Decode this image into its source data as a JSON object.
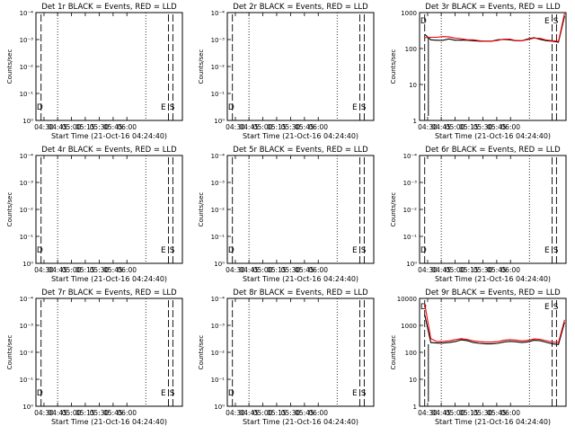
{
  "chart_data": [
    {
      "type": "line",
      "title": "Det 1r BLACK = Events, RED = LLD",
      "xlabel": "Start Time (21-Oct-16 04:24:40)",
      "ylabel": "Counts/sec",
      "x_ticks": [
        "04:30",
        "04:45",
        "05:00",
        "05:15",
        "05:30",
        "05:45",
        "06:00"
      ],
      "y_ticks": [
        "10⁰",
        "10⁻¹",
        "10⁻²",
        "10⁻³",
        "10⁻⁴"
      ],
      "markers": [
        "D",
        "E",
        "S"
      ],
      "series": []
    },
    {
      "type": "line",
      "title": "Det 2r BLACK = Events, RED = LLD",
      "xlabel": "Start Time (21-Oct-16 04:24:40)",
      "ylabel": "Counts/sec",
      "x_ticks": [
        "04:30",
        "04:45",
        "05:00",
        "05:15",
        "05:30",
        "05:45",
        "06:00"
      ],
      "y_ticks": [
        "10⁰",
        "10⁻¹",
        "10⁻²",
        "10⁻³",
        "10⁻⁴"
      ],
      "markers": [
        "D",
        "E",
        "S"
      ],
      "series": []
    },
    {
      "type": "line",
      "title": "Det 3r BLACK = Events, RED = LLD",
      "xlabel": "Start Time (21-Oct-16 04:24:40)",
      "ylabel": "Counts/sec",
      "x_ticks": [
        "04:30",
        "04:45",
        "05:00",
        "05:15",
        "05:30",
        "05:45",
        "06:00"
      ],
      "y_ticks": [
        "1",
        "10",
        "100",
        "1000"
      ],
      "markers": [
        "D",
        "E",
        "S"
      ],
      "series": [
        {
          "color": "#000000",
          "values": [
            250,
            175,
            170,
            170,
            185,
            170,
            172,
            170,
            165,
            160,
            160,
            160,
            175,
            180,
            175,
            165,
            165,
            185,
            200,
            180,
            165,
            160,
            150,
            800
          ]
        },
        {
          "color": "#ee0000",
          "values": [
            200,
            205,
            205,
            215,
            210,
            195,
            188,
            175,
            175,
            165,
            160,
            160,
            168,
            182,
            182,
            167,
            165,
            178,
            195,
            192,
            172,
            165,
            158,
            950
          ]
        }
      ]
    },
    {
      "type": "line",
      "title": "Det 4r BLACK = Events, RED = LLD",
      "xlabel": "Start Time (21-Oct-16 04:24:40)",
      "ylabel": "Counts/sec",
      "x_ticks": [
        "04:30",
        "04:45",
        "05:00",
        "05:15",
        "05:30",
        "05:45",
        "06:00"
      ],
      "y_ticks": [
        "10⁰",
        "10⁻¹",
        "10⁻²",
        "10⁻³",
        "10⁻⁴"
      ],
      "markers": [
        "D",
        "E",
        "S"
      ],
      "series": []
    },
    {
      "type": "line",
      "title": "Det 5r BLACK = Events, RED = LLD",
      "xlabel": "Start Time (21-Oct-16 04:24:40)",
      "ylabel": "Counts/sec",
      "x_ticks": [
        "04:30",
        "04:45",
        "05:00",
        "05:15",
        "05:30",
        "05:45",
        "06:00"
      ],
      "y_ticks": [
        "10⁰",
        "10⁻¹",
        "10⁻²",
        "10⁻³",
        "10⁻⁴"
      ],
      "markers": [
        "D",
        "E",
        "S"
      ],
      "series": []
    },
    {
      "type": "line",
      "title": "Det 6r BLACK = Events, RED = LLD",
      "xlabel": "Start Time (21-Oct-16 04:24:40)",
      "ylabel": "Counts/sec",
      "x_ticks": [
        "04:30",
        "04:45",
        "05:00",
        "05:15",
        "05:30",
        "05:45",
        "06:00"
      ],
      "y_ticks": [
        "10⁰",
        "10⁻¹",
        "10⁻²",
        "10⁻³",
        "10⁻⁴"
      ],
      "markers": [
        "D",
        "E",
        "S"
      ],
      "series": []
    },
    {
      "type": "line",
      "title": "Det 7r BLACK = Events, RED = LLD",
      "xlabel": "Start Time (21-Oct-16 04:24:40)",
      "ylabel": "Counts/sec",
      "x_ticks": [
        "04:30",
        "04:45",
        "05:00",
        "05:15",
        "05:30",
        "05:45",
        "06:00"
      ],
      "y_ticks": [
        "10⁰",
        "10⁻¹",
        "10⁻²",
        "10⁻³",
        "10⁻⁴"
      ],
      "markers": [
        "D",
        "E",
        "S"
      ],
      "series": []
    },
    {
      "type": "line",
      "title": "Det 8r BLACK = Events, RED = LLD",
      "xlabel": "Start Time (21-Oct-16 04:24:40)",
      "ylabel": "Counts/sec",
      "x_ticks": [
        "04:30",
        "04:45",
        "05:00",
        "05:15",
        "05:30",
        "05:45",
        "06:00"
      ],
      "y_ticks": [
        "10⁰",
        "10⁻¹",
        "10⁻²",
        "10⁻³",
        "10⁻⁴"
      ],
      "markers": [
        "D",
        "E",
        "S"
      ],
      "series": []
    },
    {
      "type": "line",
      "title": "Det 9r BLACK = Events, RED = LLD",
      "xlabel": "Start Time (21-Oct-16 04:24:40)",
      "ylabel": "Counts/sec",
      "x_ticks": [
        "04:30",
        "04:45",
        "05:00",
        "05:15",
        "05:30",
        "05:45",
        "06:00"
      ],
      "y_ticks": [
        "1",
        "10",
        "100",
        "1000",
        "10000"
      ],
      "markers": [
        "D",
        "E",
        "S"
      ],
      "series": [
        {
          "color": "#000000",
          "values": [
            2500,
            230,
            220,
            220,
            230,
            250,
            290,
            270,
            230,
            215,
            205,
            205,
            215,
            240,
            255,
            245,
            230,
            245,
            280,
            270,
            235,
            205,
            195,
            1300
          ]
        },
        {
          "color": "#ee0000",
          "values": [
            6500,
            320,
            250,
            255,
            265,
            295,
            320,
            300,
            265,
            250,
            240,
            240,
            250,
            280,
            295,
            285,
            265,
            280,
            315,
            305,
            270,
            240,
            230,
            1600
          ]
        }
      ]
    }
  ]
}
